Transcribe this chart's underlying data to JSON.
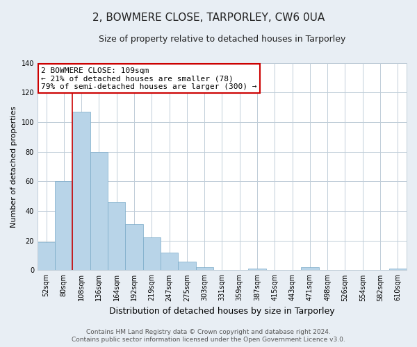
{
  "title": "2, BOWMERE CLOSE, TARPORLEY, CW6 0UA",
  "subtitle": "Size of property relative to detached houses in Tarporley",
  "xlabel": "Distribution of detached houses by size in Tarporley",
  "ylabel": "Number of detached properties",
  "bar_labels": [
    "52sqm",
    "80sqm",
    "108sqm",
    "136sqm",
    "164sqm",
    "192sqm",
    "219sqm",
    "247sqm",
    "275sqm",
    "303sqm",
    "331sqm",
    "359sqm",
    "387sqm",
    "415sqm",
    "443sqm",
    "471sqm",
    "498sqm",
    "526sqm",
    "554sqm",
    "582sqm",
    "610sqm"
  ],
  "bar_values": [
    19,
    60,
    107,
    80,
    46,
    31,
    22,
    12,
    6,
    2,
    0,
    0,
    1,
    0,
    0,
    2,
    0,
    0,
    0,
    0,
    1
  ],
  "bar_color": "#b8d4e8",
  "bar_edge_color": "#7aaac8",
  "vline_x_index": 2,
  "vline_color": "#cc0000",
  "ylim": [
    0,
    140
  ],
  "annotation_line1": "2 BOWMERE CLOSE: 109sqm",
  "annotation_line2": "← 21% of detached houses are smaller (78)",
  "annotation_line3": "79% of semi-detached houses are larger (300) →",
  "annotation_box_color": "#ffffff",
  "annotation_box_edge_color": "#cc0000",
  "footer_line1": "Contains HM Land Registry data © Crown copyright and database right 2024.",
  "footer_line2": "Contains public sector information licensed under the Open Government Licence v3.0.",
  "background_color": "#e8eef4",
  "plot_background_color": "#ffffff",
  "grid_color": "#c0cdd8",
  "title_fontsize": 11,
  "subtitle_fontsize": 9,
  "ylabel_fontsize": 8,
  "xlabel_fontsize": 9,
  "tick_fontsize": 7,
  "annotation_fontsize": 8,
  "footer_fontsize": 6.5
}
